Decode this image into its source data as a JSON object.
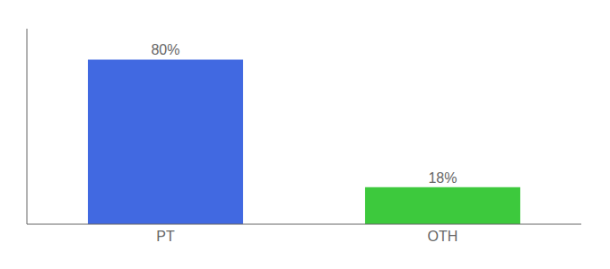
{
  "chart_data": {
    "type": "bar",
    "categories": [
      "PT",
      "OTH"
    ],
    "values": [
      80,
      18
    ],
    "value_labels": [
      "80%",
      "18%"
    ],
    "colors": [
      "#4169E1",
      "#3DC93D"
    ],
    "ylim": [
      0,
      95
    ],
    "data_labels": true,
    "tick_labels": "x",
    "grid": false
  }
}
